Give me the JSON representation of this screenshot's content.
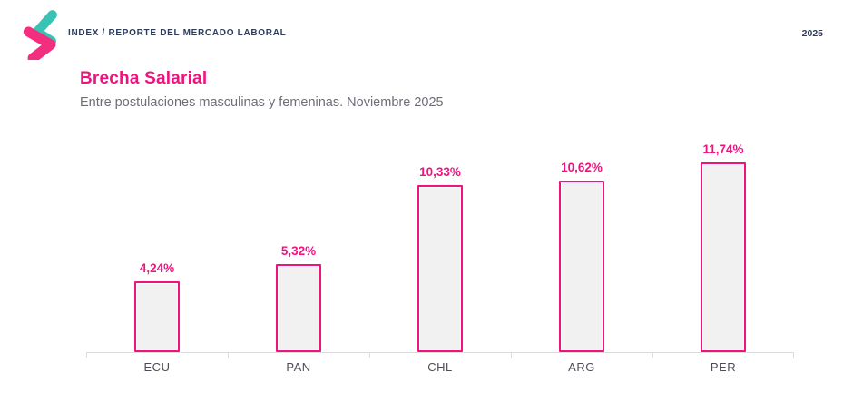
{
  "header": {
    "breadcrumb": "INDEX / REPORTE DEL MERCADO LABORAL",
    "year": "2025"
  },
  "title_block": {
    "title": "Brecha Salarial",
    "subtitle": "Entre postulaciones masculinas y femeninas. Noviembre 2025"
  },
  "icons": {
    "logo": "brand-zigzag-logo"
  },
  "colors": {
    "accent_pink": "#f0137f",
    "logo_teal": "#38c3b4",
    "logo_pink": "#f32e7f",
    "navy": "#2e3d5c",
    "subtitle_gray": "#6e6e78",
    "bar_fill": "#f1f1f1",
    "axis_gray": "#dcdcdc"
  },
  "chart_data": {
    "type": "bar",
    "title": "Brecha Salarial",
    "subtitle": "Entre postulaciones masculinas y femeninas. Noviembre 2025",
    "categories": [
      "ECU",
      "PAN",
      "CHL",
      "ARG",
      "PER"
    ],
    "values": [
      4.24,
      5.32,
      10.33,
      10.62,
      11.74
    ],
    "display_values": [
      "4,24%",
      "5,32%",
      "10,33%",
      "10,62%",
      "11,74%"
    ],
    "xlabel": "",
    "ylabel": "",
    "ylim": [
      0,
      13
    ],
    "grid": false,
    "legend": false,
    "bar_style": {
      "fill": "#f1f1f1",
      "border": "#f0137f"
    }
  }
}
